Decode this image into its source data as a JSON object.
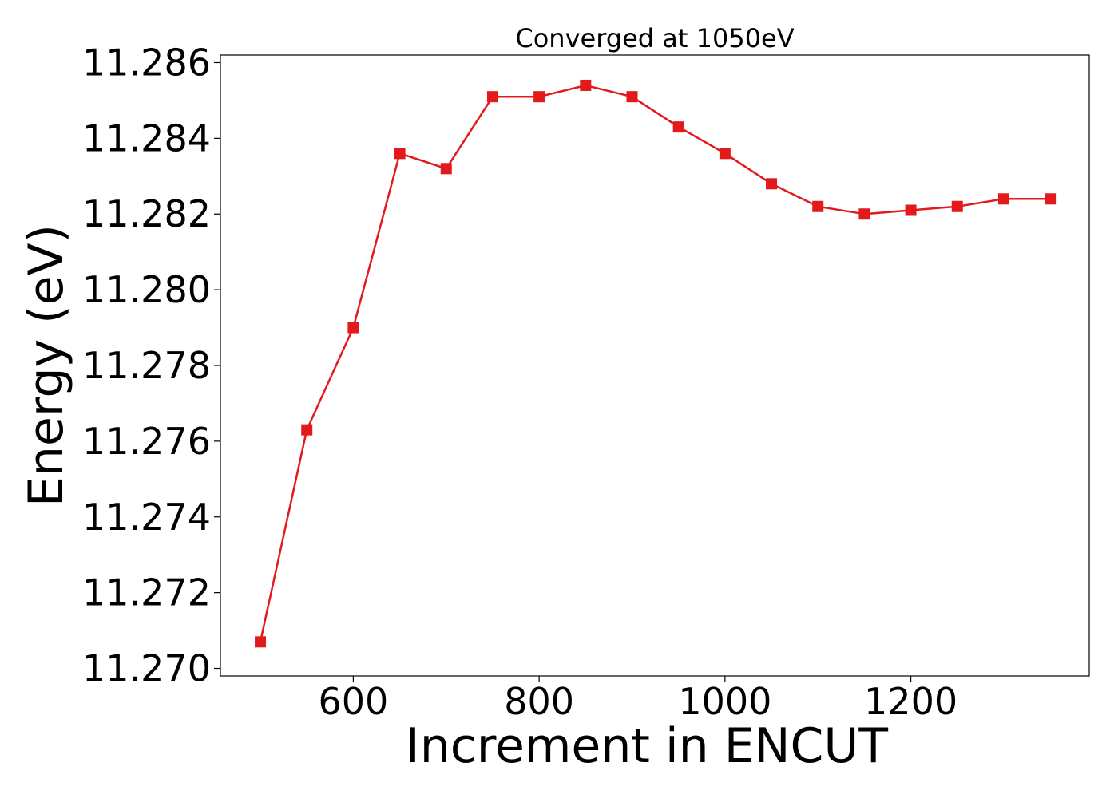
{
  "chart_data": {
    "type": "line",
    "title": "Converged at 1050eV",
    "xlabel": "Increment in ENCUT",
    "ylabel": "Energy (eV)",
    "xlim": [
      457,
      1392
    ],
    "ylim": [
      11.2698,
      11.2862
    ],
    "xticks": [
      600,
      800,
      1000,
      1200
    ],
    "yticks": [
      11.27,
      11.272,
      11.274,
      11.276,
      11.278,
      11.28,
      11.282,
      11.284,
      11.286
    ],
    "ytick_decimals": 3,
    "grid": false,
    "legend": "none",
    "series": [
      {
        "color": "#e31a1c",
        "marker": "square",
        "x": [
          500,
          550,
          600,
          650,
          700,
          750,
          800,
          850,
          900,
          950,
          1000,
          1050,
          1100,
          1150,
          1200,
          1250,
          1300,
          1350
        ],
        "y": [
          11.2707,
          11.2763,
          11.279,
          11.2836,
          11.2832,
          11.2851,
          11.2851,
          11.2854,
          11.2851,
          11.2843,
          11.2836,
          11.2828,
          11.2822,
          11.282,
          11.2821,
          11.2822,
          11.2824,
          11.2824
        ]
      }
    ]
  }
}
